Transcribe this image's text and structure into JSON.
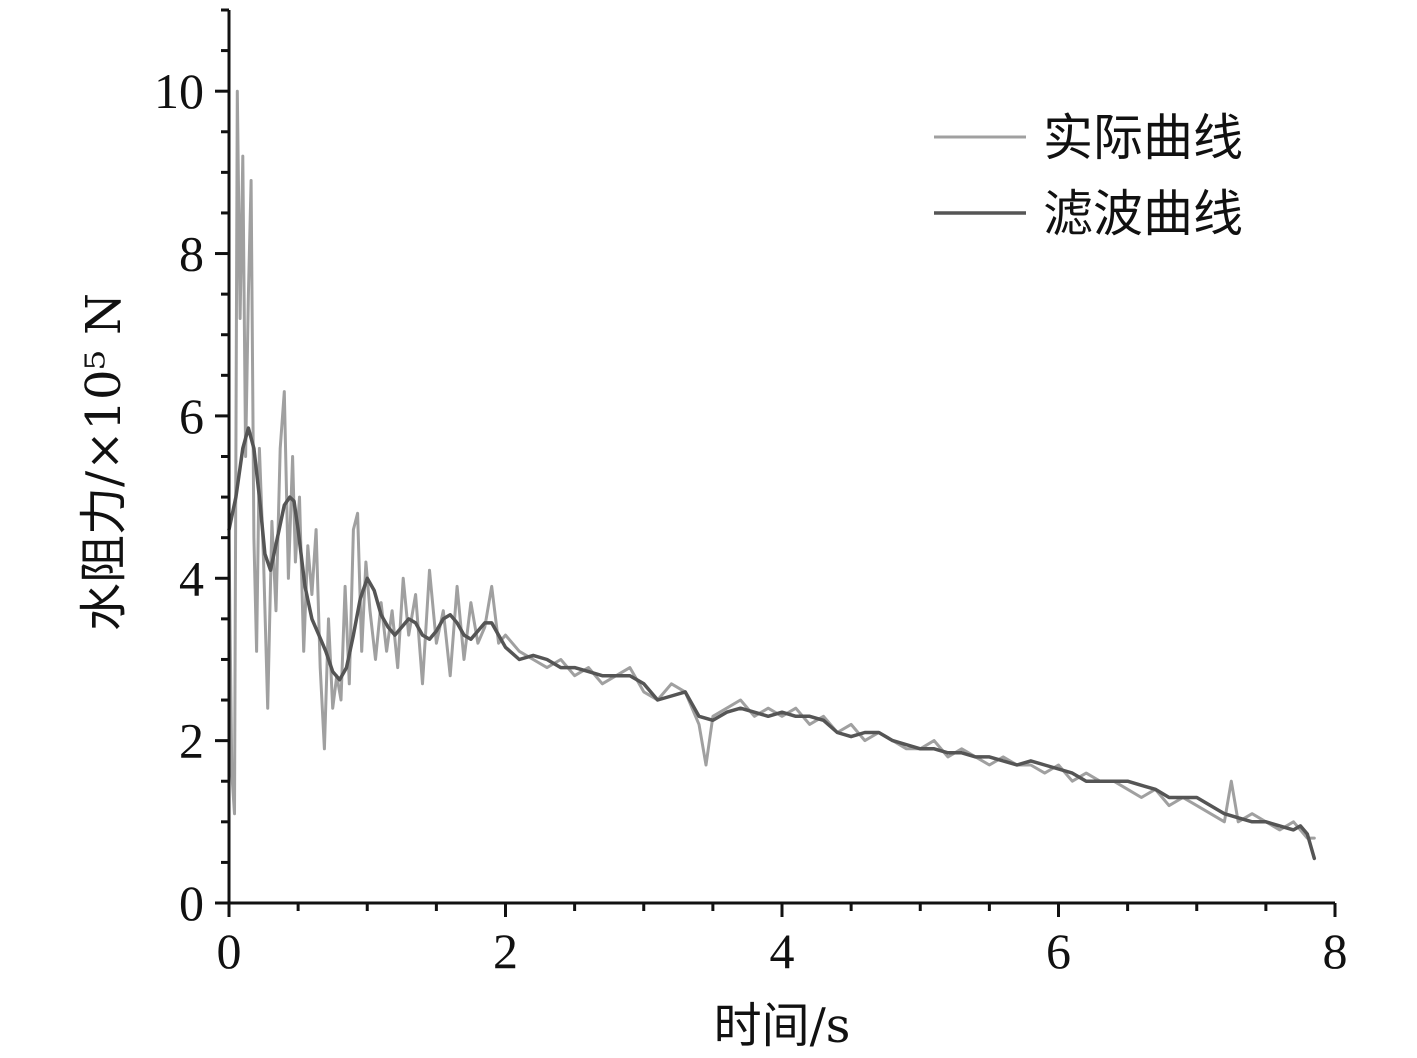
{
  "chart_data": {
    "type": "line",
    "xlabel": "时间/s",
    "ylabel": "水阻力/×10⁵ N",
    "xlim": [
      0,
      8
    ],
    "ylim": [
      0,
      11
    ],
    "xticks": [
      0,
      2,
      4,
      6,
      8
    ],
    "xtick_labels": [
      "0",
      "2",
      "4",
      "6",
      "8"
    ],
    "yticks": [
      0,
      2,
      4,
      6,
      8,
      10
    ],
    "ytick_labels": [
      "0",
      "2",
      "4",
      "6",
      "8",
      "10"
    ],
    "grid": false,
    "legend_position": "top-right",
    "series": [
      {
        "name": "实际曲线",
        "color": "#a0a0a0",
        "x": [
          0.0,
          0.02,
          0.04,
          0.06,
          0.08,
          0.1,
          0.12,
          0.14,
          0.16,
          0.18,
          0.2,
          0.22,
          0.25,
          0.28,
          0.31,
          0.34,
          0.37,
          0.4,
          0.43,
          0.46,
          0.48,
          0.51,
          0.54,
          0.57,
          0.6,
          0.63,
          0.66,
          0.69,
          0.72,
          0.75,
          0.78,
          0.81,
          0.84,
          0.87,
          0.9,
          0.93,
          0.96,
          0.99,
          1.02,
          1.06,
          1.1,
          1.14,
          1.18,
          1.22,
          1.26,
          1.3,
          1.35,
          1.4,
          1.45,
          1.5,
          1.55,
          1.6,
          1.65,
          1.7,
          1.75,
          1.8,
          1.85,
          1.9,
          1.95,
          2.0,
          2.1,
          2.2,
          2.3,
          2.4,
          2.5,
          2.6,
          2.7,
          2.8,
          2.9,
          3.0,
          3.1,
          3.2,
          3.3,
          3.4,
          3.45,
          3.5,
          3.6,
          3.7,
          3.8,
          3.9,
          4.0,
          4.1,
          4.2,
          4.3,
          4.4,
          4.5,
          4.6,
          4.7,
          4.8,
          4.9,
          5.0,
          5.1,
          5.2,
          5.3,
          5.4,
          5.5,
          5.6,
          5.7,
          5.8,
          5.9,
          6.0,
          6.1,
          6.2,
          6.3,
          6.4,
          6.5,
          6.6,
          6.7,
          6.8,
          6.9,
          7.0,
          7.1,
          7.2,
          7.25,
          7.3,
          7.4,
          7.5,
          7.6,
          7.7,
          7.8,
          7.85
        ],
        "values": [
          4.5,
          1.6,
          1.1,
          10.0,
          7.2,
          9.2,
          5.5,
          7.5,
          8.9,
          4.5,
          3.1,
          5.6,
          4.2,
          2.4,
          4.7,
          3.6,
          5.6,
          6.3,
          4.0,
          5.5,
          4.2,
          5.0,
          3.1,
          4.4,
          3.8,
          4.6,
          2.9,
          1.9,
          3.5,
          2.4,
          2.8,
          2.5,
          3.9,
          2.7,
          4.6,
          4.8,
          3.1,
          4.2,
          3.6,
          3.0,
          3.7,
          3.1,
          3.6,
          2.9,
          4.0,
          3.3,
          3.8,
          2.7,
          4.1,
          3.2,
          3.6,
          2.8,
          3.9,
          3.0,
          3.7,
          3.2,
          3.4,
          3.9,
          3.2,
          3.3,
          3.1,
          3.0,
          2.9,
          3.0,
          2.8,
          2.9,
          2.7,
          2.8,
          2.9,
          2.6,
          2.5,
          2.7,
          2.6,
          2.2,
          1.7,
          2.3,
          2.4,
          2.5,
          2.3,
          2.4,
          2.3,
          2.4,
          2.2,
          2.3,
          2.1,
          2.2,
          2.0,
          2.1,
          2.0,
          1.9,
          1.9,
          2.0,
          1.8,
          1.9,
          1.8,
          1.7,
          1.8,
          1.7,
          1.7,
          1.6,
          1.7,
          1.5,
          1.6,
          1.5,
          1.5,
          1.4,
          1.3,
          1.4,
          1.2,
          1.3,
          1.2,
          1.1,
          1.0,
          1.5,
          1.0,
          1.1,
          1.0,
          0.9,
          1.0,
          0.8,
          0.8
        ]
      },
      {
        "name": "滤波曲线",
        "color": "#555555",
        "x": [
          0.0,
          0.05,
          0.1,
          0.14,
          0.18,
          0.22,
          0.26,
          0.3,
          0.35,
          0.4,
          0.44,
          0.47,
          0.5,
          0.55,
          0.6,
          0.65,
          0.7,
          0.75,
          0.8,
          0.85,
          0.9,
          0.95,
          1.0,
          1.05,
          1.1,
          1.15,
          1.2,
          1.25,
          1.3,
          1.35,
          1.4,
          1.45,
          1.5,
          1.55,
          1.6,
          1.65,
          1.7,
          1.75,
          1.8,
          1.85,
          1.9,
          1.95,
          2.0,
          2.1,
          2.2,
          2.3,
          2.4,
          2.5,
          2.6,
          2.7,
          2.8,
          2.9,
          3.0,
          3.1,
          3.2,
          3.3,
          3.4,
          3.5,
          3.6,
          3.7,
          3.8,
          3.9,
          4.0,
          4.1,
          4.2,
          4.3,
          4.4,
          4.5,
          4.6,
          4.7,
          4.8,
          4.9,
          5.0,
          5.1,
          5.2,
          5.3,
          5.4,
          5.5,
          5.6,
          5.7,
          5.8,
          5.9,
          6.0,
          6.1,
          6.2,
          6.3,
          6.4,
          6.5,
          6.6,
          6.7,
          6.8,
          6.9,
          7.0,
          7.1,
          7.2,
          7.3,
          7.4,
          7.5,
          7.6,
          7.7,
          7.75,
          7.8,
          7.85
        ],
        "values": [
          4.6,
          5.0,
          5.6,
          5.85,
          5.6,
          5.0,
          4.3,
          4.1,
          4.5,
          4.9,
          5.0,
          4.95,
          4.6,
          3.9,
          3.5,
          3.3,
          3.1,
          2.85,
          2.75,
          2.9,
          3.3,
          3.75,
          4.0,
          3.85,
          3.55,
          3.4,
          3.3,
          3.4,
          3.5,
          3.45,
          3.3,
          3.25,
          3.35,
          3.5,
          3.55,
          3.45,
          3.3,
          3.25,
          3.35,
          3.45,
          3.45,
          3.3,
          3.15,
          3.0,
          3.05,
          3.0,
          2.9,
          2.9,
          2.85,
          2.8,
          2.8,
          2.8,
          2.7,
          2.5,
          2.55,
          2.6,
          2.3,
          2.25,
          2.35,
          2.4,
          2.35,
          2.3,
          2.35,
          2.3,
          2.3,
          2.25,
          2.1,
          2.05,
          2.1,
          2.1,
          2.0,
          1.95,
          1.9,
          1.9,
          1.85,
          1.85,
          1.8,
          1.8,
          1.75,
          1.7,
          1.75,
          1.7,
          1.65,
          1.6,
          1.5,
          1.5,
          1.5,
          1.5,
          1.45,
          1.4,
          1.3,
          1.3,
          1.3,
          1.2,
          1.1,
          1.05,
          1.0,
          1.0,
          0.95,
          0.9,
          0.95,
          0.85,
          0.55
        ]
      }
    ]
  }
}
